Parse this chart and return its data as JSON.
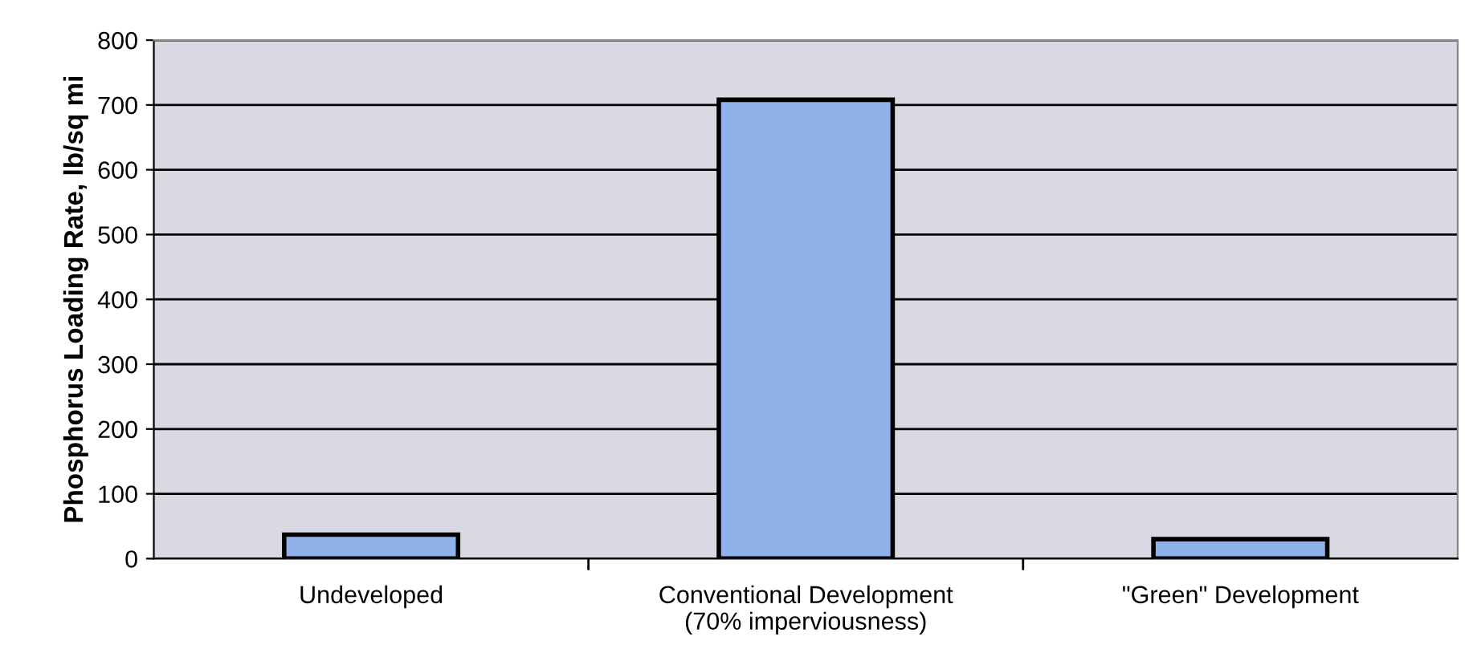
{
  "chart_data": {
    "type": "bar",
    "ylabel": "Phosphorus Loading Rate, lb/sq mi",
    "categories": [
      "Undeveloped",
      "Conventional Development\n(70% imperviousness)",
      "\"Green\" Development"
    ],
    "values": [
      37,
      708,
      30
    ],
    "color": "#8fb2ea",
    "ylim": [
      0,
      800
    ],
    "yticks": [
      0,
      100,
      200,
      300,
      400,
      500,
      600,
      700,
      800
    ],
    "grid": "y"
  }
}
